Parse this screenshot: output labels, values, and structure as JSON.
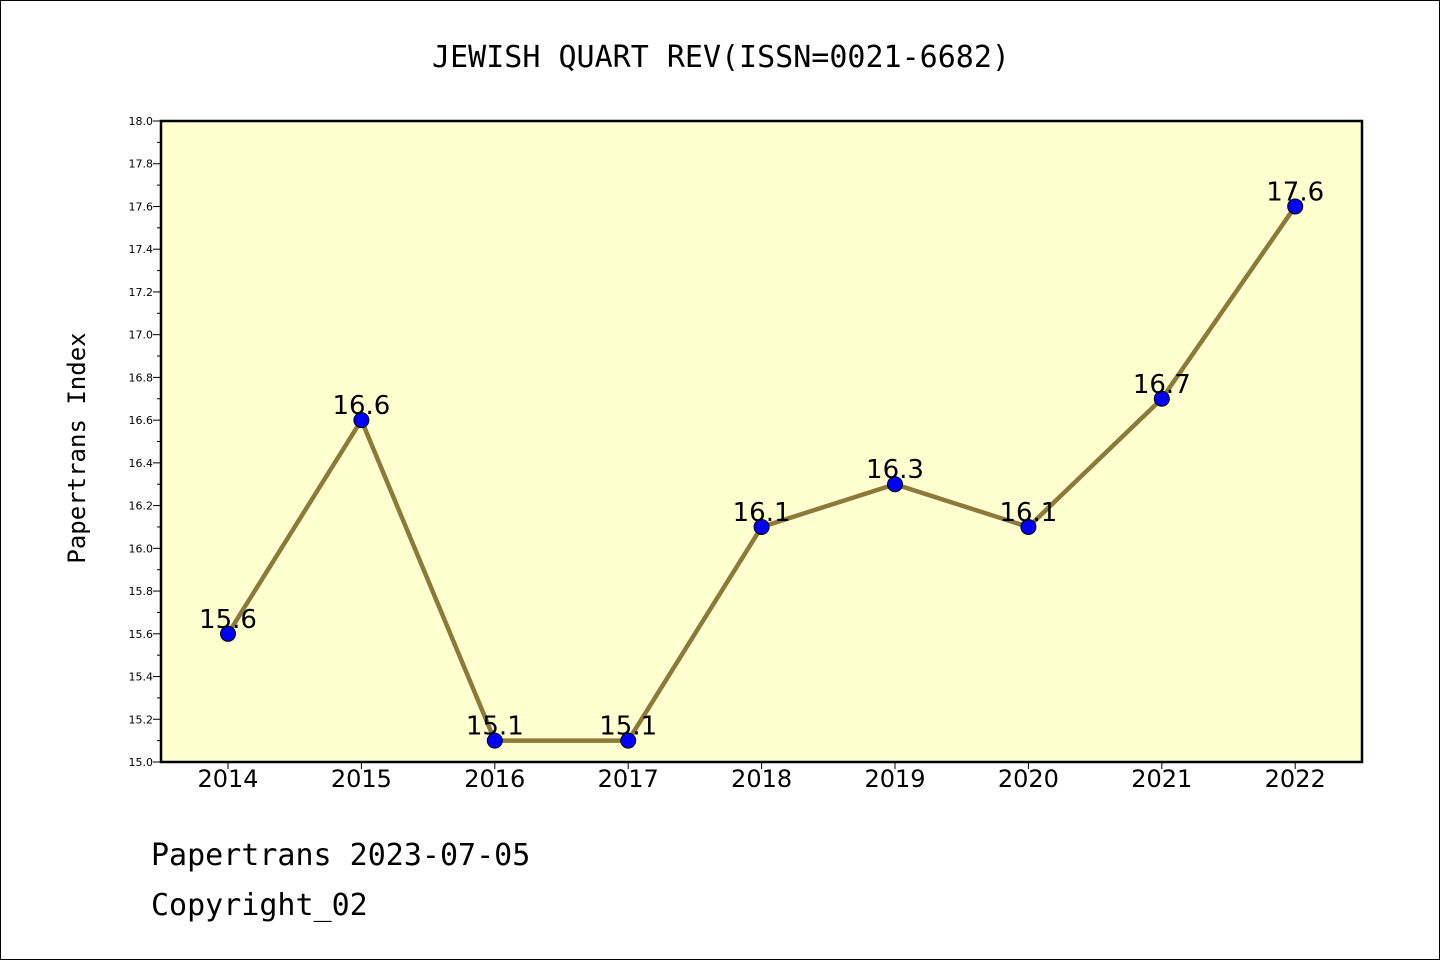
{
  "chart_data": {
    "type": "line",
    "title": "JEWISH QUART REV(ISSN=0021-6682)",
    "xlabel": "",
    "ylabel": "Papertrans Index",
    "categories": [
      "2014",
      "2015",
      "2016",
      "2017",
      "2018",
      "2019",
      "2020",
      "2021",
      "2022"
    ],
    "values": [
      15.6,
      16.6,
      15.1,
      15.1,
      16.1,
      16.3,
      16.1,
      16.7,
      17.6
    ],
    "data_labels": [
      "15.6",
      "16.6",
      "15.1",
      "15.1",
      "16.1",
      "16.3",
      "16.1",
      "16.7",
      "17.6"
    ],
    "ylim": [
      15.0,
      18.0
    ],
    "yticks": [
      "15.0",
      "15.2",
      "15.4",
      "15.6",
      "15.8",
      "16.0",
      "16.2",
      "16.4",
      "16.6",
      "16.8",
      "17.0",
      "17.2",
      "17.4",
      "17.6",
      "17.8",
      "18.0"
    ],
    "grid": false,
    "colors": {
      "plot_background": "#ffffd0",
      "line": "#8b7a3a",
      "marker": "#0000ff"
    }
  },
  "footer": {
    "line1": "Papertrans 2023-07-05",
    "line2": "Copyright_02"
  }
}
